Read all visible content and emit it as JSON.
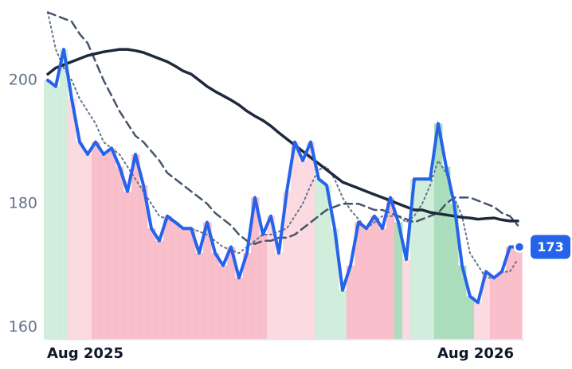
{
  "chart_data": {
    "type": "line",
    "categories": [
      "Aug 2025",
      null,
      null,
      null,
      null,
      null,
      null,
      null,
      null,
      null,
      null,
      null,
      null,
      null,
      null,
      null,
      null,
      null,
      null,
      null,
      null,
      null,
      null,
      null,
      null,
      null,
      null,
      null,
      null,
      null,
      null,
      null,
      null,
      null,
      null,
      null,
      null,
      null,
      null,
      null,
      null,
      null,
      null,
      null,
      null,
      null,
      null,
      null,
      null,
      "Aug 2026",
      null,
      null,
      null,
      null,
      null,
      null,
      null,
      null,
      null,
      null
    ],
    "ylim": [
      158,
      213
    ],
    "yticks": [
      160,
      180,
      200
    ],
    "series": [
      {
        "color": "#2563eb",
        "style": "solid",
        "width": 4,
        "end_label": true,
        "values": [
          200,
          199,
          205,
          197,
          190,
          188,
          190,
          188,
          189,
          186,
          182,
          188,
          183,
          176,
          174,
          178,
          177,
          176,
          176,
          172,
          177,
          172,
          170,
          173,
          168,
          172,
          181,
          175,
          178,
          172,
          182,
          190,
          187,
          190,
          184,
          183,
          176,
          166,
          170,
          177,
          176,
          178,
          176,
          181,
          177,
          171,
          184,
          184,
          184,
          193,
          186,
          180,
          170,
          165,
          164,
          169,
          168,
          169,
          173,
          173
        ],
        "fill_colors": [
          "#c9ead6",
          "#c9ead6",
          "#c9ead6",
          "#fbd3dc",
          "#fbd3dc",
          "#fbd3dc",
          "#f8b4c2",
          "#f8b4c2",
          "#f8b4c2",
          "#f8b4c2",
          "#f8b4c2",
          "#f8b4c2",
          "#f8b4c2",
          "#f8b4c2",
          "#f8b4c2",
          "#f8b4c2",
          "#f8b4c2",
          "#f8b4c2",
          "#f8b4c2",
          "#f8b4c2",
          "#f8b4c2",
          "#f8b4c2",
          "#f8b4c2",
          "#f8b4c2",
          "#f8b4c2",
          "#f8b4c2",
          "#f8b4c2",
          "#f8b4c2",
          "#fbd3dc",
          "#fbd3dc",
          "#fbd3dc",
          "#fbd3dc",
          "#fbd3dc",
          "#fbd3dc",
          "#c9ead6",
          "#c9ead6",
          "#c9ead6",
          "#c9ead6",
          "#f8b4c2",
          "#f8b4c2",
          "#f8b4c2",
          "#f8b4c2",
          "#f8b4c2",
          "#f8b4c2",
          "#9dd8b3",
          "#fbd3dc",
          "#c9ead6",
          "#c9ead6",
          "#c9ead6",
          "#9dd8b3",
          "#9dd8b3",
          "#9dd8b3",
          "#9dd8b3",
          "#9dd8b3",
          "#fbd3dc",
          "#fbd3dc",
          "#f8b4c2",
          "#f8b4c2",
          "#f8b4c2",
          "#f8b4c2"
        ]
      },
      {
        "color": "#1e293b",
        "style": "solid",
        "width": 3.5,
        "values": [
          201,
          202,
          202.5,
          203,
          203.5,
          204,
          204.3,
          204.6,
          204.8,
          205,
          205,
          204.8,
          204.5,
          204,
          203.5,
          203,
          202.3,
          201.5,
          201,
          200,
          199,
          198.2,
          197.5,
          196.8,
          196,
          195,
          194.2,
          193.5,
          192.6,
          191.5,
          190.5,
          189.5,
          188.5,
          187.5,
          186.5,
          185.5,
          184.5,
          183.5,
          183,
          182.5,
          182,
          181.5,
          181,
          180.5,
          180,
          179.5,
          179,
          179,
          178.6,
          178.4,
          178.2,
          178,
          177.8,
          177.7,
          177.5,
          177.6,
          177.7,
          177.4,
          177.2,
          177.2
        ]
      },
      {
        "color": "#475569",
        "style": "dashed",
        "width": 2.5,
        "values": [
          211,
          210.5,
          210,
          209.5,
          207.5,
          206,
          203,
          200,
          197.5,
          195,
          193,
          191,
          190,
          188.5,
          187,
          185,
          184,
          183,
          182,
          181,
          180,
          178.5,
          177.5,
          176.5,
          175,
          174,
          173.5,
          174,
          174,
          174.5,
          174.5,
          175,
          176,
          177,
          178,
          179,
          179.5,
          180,
          180,
          180,
          179.5,
          179,
          179,
          178.5,
          178,
          177.5,
          177,
          177.5,
          178,
          178.5,
          180,
          181,
          181,
          181,
          180.5,
          180,
          179.5,
          178.5,
          178,
          176.5
        ]
      },
      {
        "color": "#64748b",
        "style": "dotted",
        "width": 2,
        "values": [
          211,
          205,
          202,
          200,
          197,
          195,
          193,
          190,
          189,
          188,
          186,
          184,
          182,
          180,
          178,
          177.5,
          177,
          176,
          176,
          175.5,
          175,
          174,
          173,
          172.5,
          172,
          173,
          174,
          175,
          175,
          175.5,
          176,
          178,
          180,
          183,
          185.5,
          186,
          184,
          181,
          179,
          177.5,
          176,
          177,
          178,
          178,
          178,
          177,
          178,
          180,
          183,
          187,
          185,
          181,
          178,
          172,
          170,
          168,
          168,
          169,
          169,
          171
        ]
      }
    ]
  }
}
